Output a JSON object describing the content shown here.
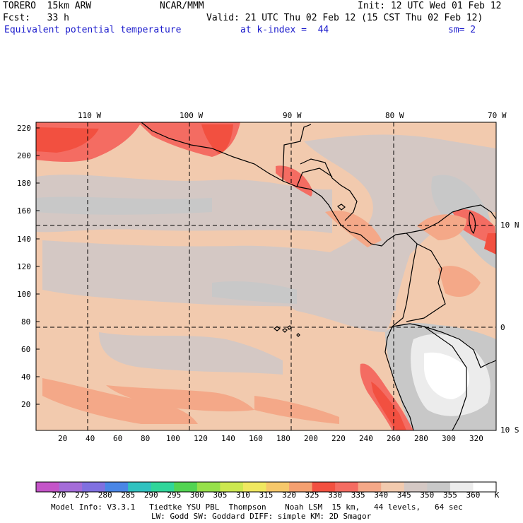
{
  "header": {
    "model": "TORERO  15km ARW",
    "org": "NCAR/MMM",
    "init": "Init: 12 UTC Wed 01 Feb 12",
    "fcst": "Fcst:   33 h",
    "valid": "Valid: 21 UTC Thu 02 Feb 12 (15 CST Thu 02 Feb 12)",
    "field": "Equivalent potential temperature",
    "level": "at k-index =  44",
    "smooth": "sm= 2"
  },
  "map": {
    "lon_labels": [
      "110 W",
      "100 W",
      "90 W",
      "80 W",
      "70 W"
    ],
    "lat_labels": [
      "10 N",
      "0",
      "10 S"
    ],
    "y_ticks": [
      "220",
      "200",
      "180",
      "160",
      "140",
      "120",
      "100",
      "80",
      "60",
      "40",
      "20"
    ],
    "x_ticks": [
      "20",
      "40",
      "60",
      "80",
      "100",
      "120",
      "140",
      "160",
      "180",
      "200",
      "220",
      "240",
      "260",
      "280",
      "300",
      "320"
    ]
  },
  "colorbar": {
    "values": [
      "270",
      "275",
      "280",
      "285",
      "290",
      "295",
      "300",
      "305",
      "310",
      "315",
      "320",
      "325",
      "330",
      "335",
      "340",
      "345",
      "350",
      "355",
      "360"
    ],
    "colors": [
      "#c454c8",
      "#a46cd8",
      "#8070e0",
      "#4a86e6",
      "#30c2c0",
      "#30d69a",
      "#52d452",
      "#96e04a",
      "#cce850",
      "#f0e860",
      "#f6c86a",
      "#f4a070",
      "#f25040",
      "#f46c62",
      "#f4a888",
      "#f2caae",
      "#d4c8c4",
      "#c8c8c8",
      "#ececec",
      "#ffffff"
    ],
    "unit": "K"
  },
  "footer": {
    "line1": "Model Info: V3.3.1   Tiedtke YSU PBL  Thompson    Noah LSM  15 km,   44 levels,   64 sec",
    "line2": "LW: Godd SW: Goddard DIFF: simple KM: 2D Smagor"
  }
}
